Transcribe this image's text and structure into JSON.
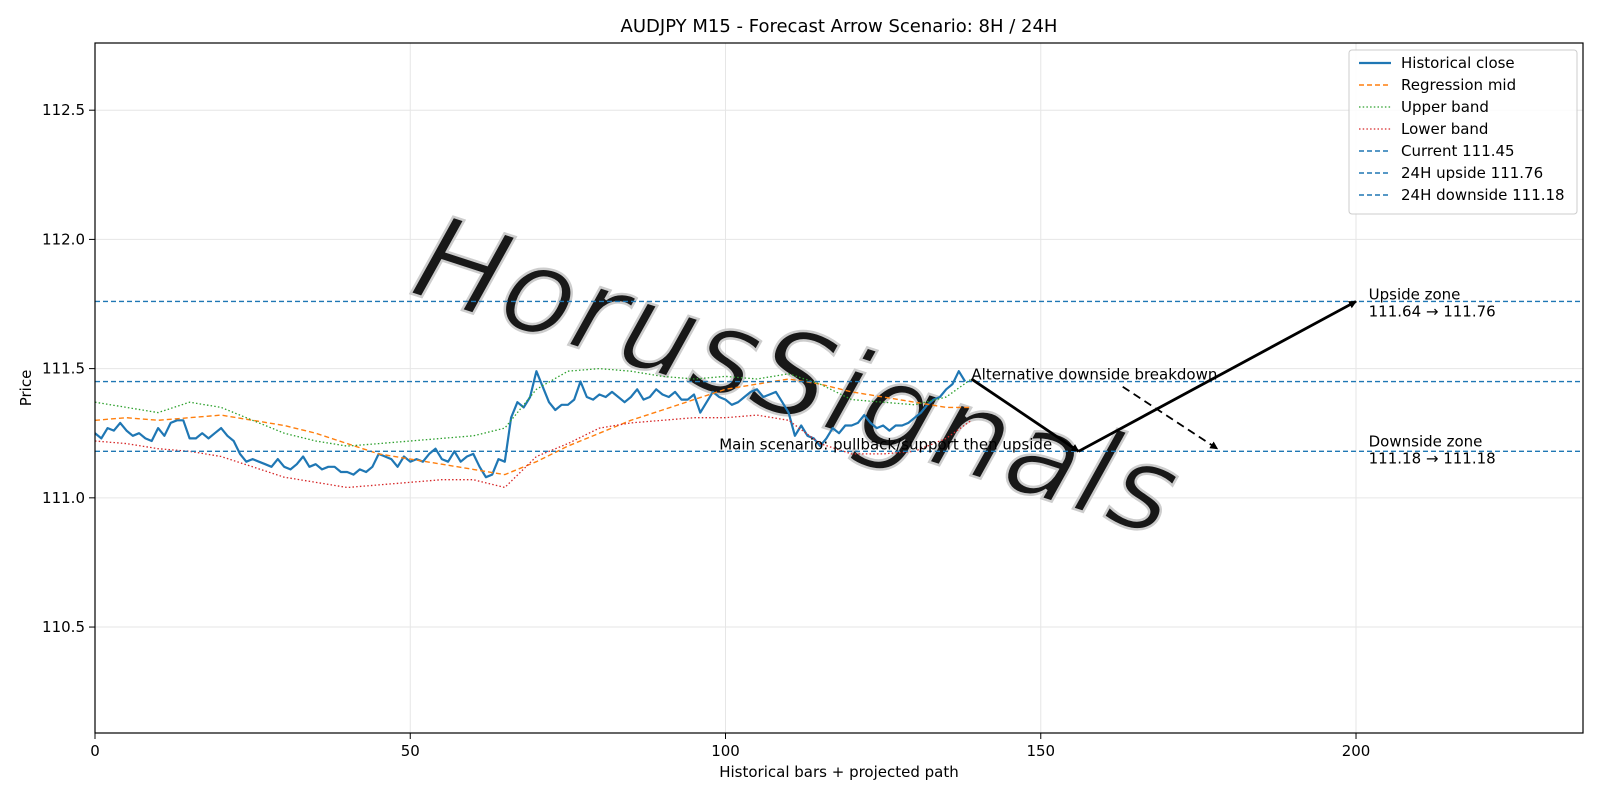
{
  "chart_data": {
    "type": "line",
    "title": "AUDJPY M15 - Forecast Arrow Scenario: 8H / 24H",
    "xlabel": "Historical bars + projected path",
    "ylabel": "Price",
    "xlim": [
      0,
      236
    ],
    "ylim": [
      110.09,
      112.76
    ],
    "x_ticks": [
      0,
      50,
      100,
      150,
      200
    ],
    "y_ticks": [
      110.5,
      111.0,
      111.5,
      112.0,
      112.5
    ],
    "grid": true,
    "legend_position": "top-right",
    "colors": {
      "historical": "#1f77b4",
      "regression": "#ff7f0e",
      "upper": "#2ca02c",
      "lower": "#d62728",
      "hline": "#1f77b4",
      "arrow": "#000000",
      "watermark": "#c8c8c8"
    },
    "series": [
      {
        "name": "Historical close",
        "style": "solid",
        "x_start": 0,
        "values": [
          111.25,
          111.23,
          111.27,
          111.26,
          111.29,
          111.26,
          111.24,
          111.25,
          111.23,
          111.22,
          111.27,
          111.24,
          111.29,
          111.3,
          111.3,
          111.23,
          111.23,
          111.25,
          111.23,
          111.25,
          111.27,
          111.24,
          111.22,
          111.17,
          111.14,
          111.15,
          111.14,
          111.13,
          111.12,
          111.15,
          111.12,
          111.11,
          111.13,
          111.16,
          111.12,
          111.13,
          111.11,
          111.12,
          111.12,
          111.1,
          111.1,
          111.09,
          111.11,
          111.1,
          111.12,
          111.17,
          111.16,
          111.15,
          111.12,
          111.16,
          111.14,
          111.15,
          111.14,
          111.17,
          111.19,
          111.15,
          111.14,
          111.18,
          111.14,
          111.16,
          111.17,
          111.12,
          111.08,
          111.09,
          111.15,
          111.14,
          111.31,
          111.37,
          111.35,
          111.39,
          111.49,
          111.43,
          111.37,
          111.34,
          111.36,
          111.36,
          111.38,
          111.45,
          111.39,
          111.38,
          111.4,
          111.39,
          111.41,
          111.39,
          111.37,
          111.39,
          111.42,
          111.38,
          111.39,
          111.42,
          111.4,
          111.39,
          111.41,
          111.38,
          111.38,
          111.4,
          111.33,
          111.37,
          111.41,
          111.39,
          111.38,
          111.36,
          111.37,
          111.39,
          111.41,
          111.42,
          111.39,
          111.4,
          111.41,
          111.37,
          111.33,
          111.24,
          111.28,
          111.24,
          111.23,
          111.2,
          111.23,
          111.27,
          111.25,
          111.28,
          111.28,
          111.29,
          111.32,
          111.29,
          111.27,
          111.28,
          111.26,
          111.28,
          111.28,
          111.29,
          111.31,
          111.33,
          111.36,
          111.38,
          111.39,
          111.42,
          111.44,
          111.49,
          111.45
        ]
      },
      {
        "name": "Regression mid",
        "style": "dashed",
        "x": [
          0,
          5,
          10,
          15,
          20,
          25,
          30,
          35,
          40,
          45,
          50,
          55,
          60,
          65,
          70,
          75,
          80,
          85,
          90,
          95,
          100,
          105,
          110,
          115,
          120,
          125,
          130,
          135,
          139
        ],
        "values": [
          111.3,
          111.31,
          111.3,
          111.31,
          111.32,
          111.3,
          111.28,
          111.25,
          111.21,
          111.17,
          111.15,
          111.13,
          111.11,
          111.09,
          111.14,
          111.2,
          111.25,
          111.3,
          111.34,
          111.38,
          111.42,
          111.44,
          111.46,
          111.44,
          111.41,
          111.39,
          111.37,
          111.35,
          111.35
        ]
      },
      {
        "name": "Upper band",
        "style": "dotted",
        "x": [
          0,
          5,
          10,
          15,
          20,
          25,
          30,
          35,
          40,
          45,
          50,
          55,
          60,
          65,
          70,
          75,
          80,
          85,
          90,
          95,
          100,
          105,
          110,
          115,
          120,
          125,
          130,
          135,
          139
        ],
        "values": [
          111.37,
          111.35,
          111.33,
          111.37,
          111.35,
          111.3,
          111.25,
          111.22,
          111.2,
          111.21,
          111.22,
          111.23,
          111.24,
          111.27,
          111.42,
          111.49,
          111.5,
          111.49,
          111.47,
          111.46,
          111.47,
          111.46,
          111.48,
          111.44,
          111.38,
          111.37,
          111.36,
          111.39,
          111.46
        ]
      },
      {
        "name": "Lower band",
        "style": "dotted",
        "x": [
          0,
          5,
          10,
          15,
          20,
          25,
          30,
          35,
          40,
          45,
          50,
          55,
          60,
          65,
          70,
          75,
          80,
          85,
          90,
          95,
          100,
          105,
          110,
          115,
          120,
          125,
          130,
          135,
          139
        ],
        "values": [
          111.22,
          111.21,
          111.19,
          111.18,
          111.16,
          111.12,
          111.08,
          111.06,
          111.04,
          111.05,
          111.06,
          111.07,
          111.07,
          111.04,
          111.16,
          111.21,
          111.27,
          111.29,
          111.3,
          111.31,
          111.31,
          111.32,
          111.3,
          111.21,
          111.17,
          111.17,
          111.18,
          111.23,
          111.3
        ]
      }
    ],
    "hlines": [
      {
        "name": "Current 111.45",
        "value": 111.45
      },
      {
        "name": "24H upside 111.76",
        "value": 111.76
      },
      {
        "name": "24H downside 111.18",
        "value": 111.18
      }
    ],
    "arrows": [
      {
        "from": [
          139,
          111.46
        ],
        "to": [
          156,
          111.18
        ],
        "style": "solid"
      },
      {
        "from": [
          156,
          111.18
        ],
        "to": [
          200,
          111.76
        ],
        "style": "solid"
      },
      {
        "from": [
          163,
          111.43
        ],
        "to": [
          178,
          111.19
        ],
        "style": "dashed"
      }
    ],
    "annotations": [
      {
        "lines": [
          "Alternative downside breakdown"
        ],
        "x": 139,
        "y": 111.45
      },
      {
        "lines": [
          "Main scenario: pullback/support then upside"
        ],
        "x": 99,
        "y": 111.18
      },
      {
        "lines": [
          "Upside zone",
          "111.64 → 111.76"
        ],
        "x": 202,
        "y": 111.76
      },
      {
        "lines": [
          "Downside zone",
          "111.18 → 111.18"
        ],
        "x": 202,
        "y": 111.19
      }
    ],
    "watermark": "HorusSignals"
  }
}
